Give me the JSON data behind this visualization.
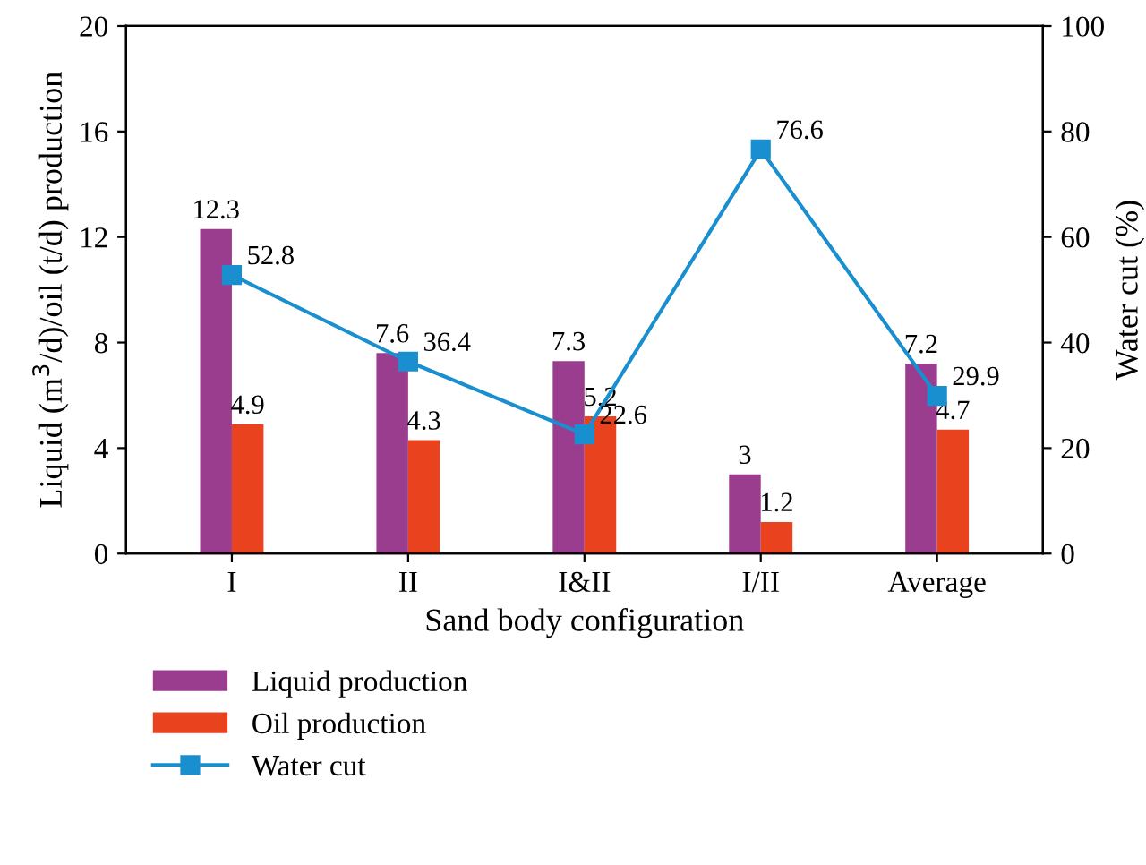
{
  "chart_data": {
    "type": "bar",
    "xlabel": "Sand body configuration",
    "ylabel": "Liquid (m$^{3}$/d)/oil (t/d) production",
    "y2label": "Water cut (%)",
    "categories": [
      "I",
      "II",
      "I&II",
      "I/II",
      "Average"
    ],
    "series": [
      {
        "name": "Liquid production",
        "color": "#9b3d8f",
        "values": [
          12.3,
          7.6,
          7.3,
          3,
          7.2
        ]
      },
      {
        "name": "Oil production",
        "color": "#e8431e",
        "values": [
          4.9,
          4.3,
          5.2,
          1.2,
          4.7
        ]
      },
      {
        "name": "Water cut",
        "type": "line",
        "axis": "y2",
        "color": "#1a8fcf",
        "values": [
          52.8,
          36.4,
          22.6,
          76.6,
          29.9
        ],
        "marker": "square",
        "line_style": "solid"
      }
    ],
    "ylim": [
      0,
      20
    ],
    "yticks": [
      0,
      4,
      8,
      12,
      16,
      20
    ],
    "y2lim": [
      0,
      100
    ],
    "y2ticks": [
      0,
      20,
      40,
      60,
      80,
      100
    ],
    "data_labels": true,
    "grid": false,
    "legend": "bottom"
  }
}
